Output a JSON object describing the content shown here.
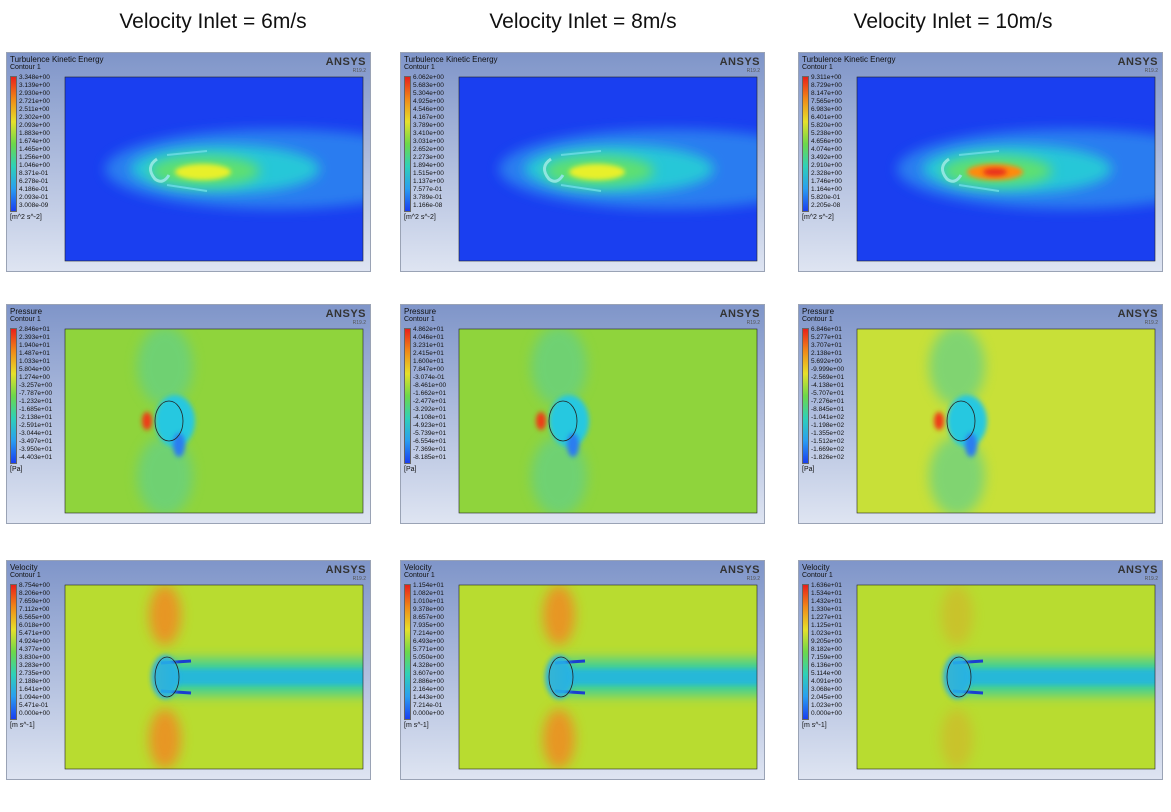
{
  "columns": [
    "Velocity Inlet = 6m/s",
    "Velocity Inlet = 8m/s",
    "Velocity Inlet = 10m/s"
  ],
  "logo": {
    "name": "ANSYS",
    "version": "R19.2"
  },
  "rows": [
    {
      "quantity": "Turbulence Kinetic Energy",
      "contour": "Contour 1",
      "unit": "[m^2 s^-2]",
      "panels": [
        {
          "ticks": [
            "3.348e+00",
            "3.139e+00",
            "2.930e+00",
            "2.721e+00",
            "2.511e+00",
            "2.302e+00",
            "2.093e+00",
            "1.883e+00",
            "1.674e+00",
            "1.465e+00",
            "1.256e+00",
            "1.046e+00",
            "8.371e-01",
            "6.278e-01",
            "4.186e-01",
            "2.093e-01",
            "3.008e-09"
          ]
        },
        {
          "ticks": [
            "6.062e+00",
            "5.683e+00",
            "5.304e+00",
            "4.925e+00",
            "4.546e+00",
            "4.167e+00",
            "3.789e+00",
            "3.410e+00",
            "3.031e+00",
            "2.652e+00",
            "2.273e+00",
            "1.894e+00",
            "1.515e+00",
            "1.137e+00",
            "7.577e-01",
            "3.789e-01",
            "1.166e-08"
          ]
        },
        {
          "ticks": [
            "9.311e+00",
            "8.729e+00",
            "8.147e+00",
            "7.565e+00",
            "6.983e+00",
            "6.401e+00",
            "5.820e+00",
            "5.238e+00",
            "4.656e+00",
            "4.074e+00",
            "3.492e+00",
            "2.910e+00",
            "2.328e+00",
            "1.746e+00",
            "1.164e+00",
            "5.820e-01",
            "2.205e-08"
          ]
        }
      ]
    },
    {
      "quantity": "Pressure",
      "contour": "Contour 1",
      "unit": "[Pa]",
      "panels": [
        {
          "ticks": [
            "2.846e+01",
            "2.393e+01",
            "1.940e+01",
            "1.487e+01",
            "1.033e+01",
            "5.804e+00",
            "1.274e+00",
            "-3.257e+00",
            "-7.787e+00",
            "-1.232e+01",
            "-1.685e+01",
            "-2.138e+01",
            "-2.591e+01",
            "-3.044e+01",
            "-3.497e+01",
            "-3.950e+01",
            "-4.403e+01"
          ]
        },
        {
          "ticks": [
            "4.862e+01",
            "4.046e+01",
            "3.231e+01",
            "2.415e+01",
            "1.600e+01",
            "7.847e+00",
            "-3.074e-01",
            "-8.461e+00",
            "-1.662e+01",
            "-2.477e+01",
            "-3.292e+01",
            "-4.108e+01",
            "-4.923e+01",
            "-5.739e+01",
            "-6.554e+01",
            "-7.369e+01",
            "-8.185e+01"
          ]
        },
        {
          "ticks": [
            "6.846e+01",
            "5.277e+01",
            "3.707e+01",
            "2.138e+01",
            "5.692e+00",
            "-9.999e+00",
            "-2.569e+01",
            "-4.138e+01",
            "-5.707e+01",
            "-7.276e+01",
            "-8.845e+01",
            "-1.041e+02",
            "-1.198e+02",
            "-1.355e+02",
            "-1.512e+02",
            "-1.669e+02",
            "-1.826e+02"
          ]
        }
      ]
    },
    {
      "quantity": "Velocity",
      "contour": "Contour 1",
      "unit": "[m s^-1]",
      "panels": [
        {
          "ticks": [
            "8.754e+00",
            "8.206e+00",
            "7.659e+00",
            "7.112e+00",
            "6.565e+00",
            "6.018e+00",
            "5.471e+00",
            "4.924e+00",
            "4.377e+00",
            "3.830e+00",
            "3.283e+00",
            "2.735e+00",
            "2.188e+00",
            "1.641e+00",
            "1.094e+00",
            "5.471e-01",
            "0.000e+00"
          ]
        },
        {
          "ticks": [
            "1.154e+01",
            "1.082e+01",
            "1.010e+01",
            "9.378e+00",
            "8.657e+00",
            "7.935e+00",
            "7.214e+00",
            "6.493e+00",
            "5.771e+00",
            "5.050e+00",
            "4.328e+00",
            "3.607e+00",
            "2.886e+00",
            "2.164e+00",
            "1.443e+00",
            "7.214e-01",
            "0.000e+00"
          ]
        },
        {
          "ticks": [
            "1.636e+01",
            "1.534e+01",
            "1.432e+01",
            "1.330e+01",
            "1.227e+01",
            "1.125e+01",
            "1.023e+01",
            "9.205e+00",
            "8.182e+00",
            "7.159e+00",
            "6.136e+00",
            "5.114e+00",
            "4.091e+00",
            "3.068e+00",
            "2.045e+00",
            "1.023e+00",
            "0.000e+00"
          ]
        }
      ]
    }
  ],
  "colors": {
    "tke_background": "#1a3ff0",
    "pressure_background": "#8fd43c",
    "velocity_background": "#b8dc30",
    "frame_gradient_top": "#7f95c9",
    "frame_gradient_bottom": "#dfe5f2"
  }
}
